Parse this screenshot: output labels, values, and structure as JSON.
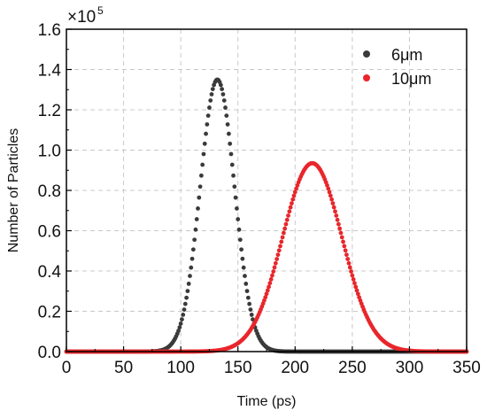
{
  "chart_data": {
    "type": "scatter",
    "xlabel": "Time (ps)",
    "ylabel": "Number of Particles",
    "y_multiplier": {
      "base": "×10",
      "exponent": "5"
    },
    "xlim": [
      0,
      350
    ],
    "ylim": [
      0,
      1.6
    ],
    "x_ticks": [
      "0",
      "50",
      "100",
      "150",
      "200",
      "250",
      "300",
      "350"
    ],
    "y_ticks": [
      "0.0",
      "0.2",
      "0.4",
      "0.6",
      "0.8",
      "1.0",
      "1.2",
      "1.4",
      "1.6"
    ],
    "grid": true,
    "legend_position": "top-right",
    "series": [
      {
        "name": "6μm",
        "color": "#3a3a3a",
        "peak_x": 132,
        "peak_y": 1.35,
        "sigma": 15,
        "x_range": [
          0,
          350
        ],
        "step": 1
      },
      {
        "name": "10μm",
        "color": "#e8262b",
        "peak_x": 215,
        "peak_y": 0.935,
        "sigma": 26,
        "x_range": [
          0,
          350
        ],
        "step": 1
      }
    ]
  }
}
